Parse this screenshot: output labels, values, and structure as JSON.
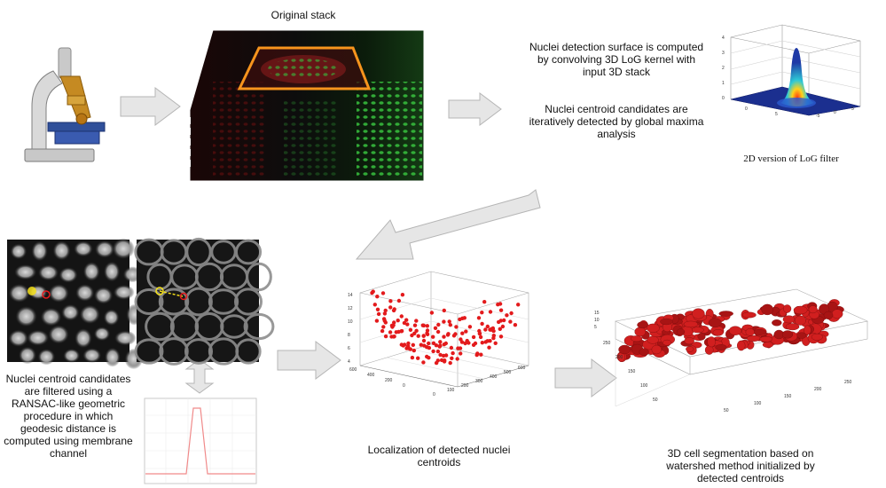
{
  "captions": {
    "original_stack": "Original stack",
    "nuclei_surface": "Nuclei detection surface is computed by convolving 3D LoG kernel with input 3D stack",
    "nuclei_candidates": "Nuclei centroid candidates are iteratively detected by global maxima analysis",
    "log_filter": "2D version of LoG filter",
    "filtered_candidates": "Nuclei centroid candidates are filtered using a RANSAC-like geometric procedure in which geodesic distance is computed using membrane channel",
    "localization": "Localization of detected nuclei centroids",
    "segmentation": "3D cell segmentation based on watershed method initialized by detected centroids"
  },
  "log_plot": {
    "z_ticks": [
      "4",
      "3",
      "2",
      "1",
      "0"
    ],
    "x_ticks": [
      "0",
      "5"
    ],
    "y_ticks": [
      "-5",
      "0",
      "5"
    ]
  },
  "centroid_plot": {
    "z_ticks": [
      "14",
      "12",
      "10",
      "8",
      "6",
      "4"
    ],
    "x_ticks": [
      "600",
      "400",
      "200",
      "0"
    ],
    "y_ticks": [
      "0",
      "100",
      "200",
      "300",
      "400",
      "500",
      "600"
    ]
  },
  "segmentation_plot": {
    "z_ticks": [
      "15",
      "10",
      "5"
    ],
    "x_ticks": [
      "250",
      "200",
      "150",
      "100",
      "50"
    ],
    "y_ticks": [
      "50",
      "100",
      "150",
      "200",
      "250"
    ]
  },
  "colors": {
    "arrow_fill": "#e6e6e6",
    "arrow_stroke": "#b5b5b5",
    "stack_highlight": "#f7941d",
    "nuclei_green": "#2fbf3a",
    "centroid_red": "#e31a1c",
    "segment_red": "#d11f1f",
    "candidate_yellow": "#f5e11a"
  }
}
